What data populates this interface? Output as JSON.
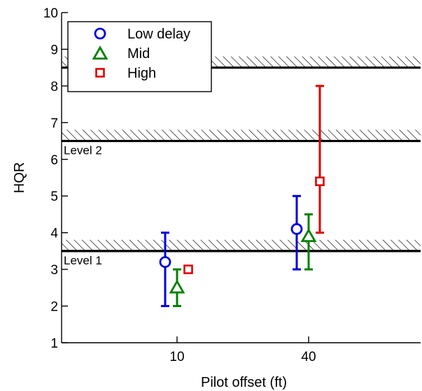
{
  "chart_data": {
    "type": "scatter",
    "xlabel": "Pilot offset (ft)",
    "ylabel": "HQR",
    "ylim": [
      1,
      10
    ],
    "y_ticks": [
      "1",
      "2",
      "3",
      "4",
      "5",
      "6",
      "7",
      "8",
      "9",
      "10"
    ],
    "categories": [
      "10",
      "40"
    ],
    "series": [
      {
        "name": "Low delay",
        "marker": "circle",
        "color": "#0000e0",
        "points": [
          {
            "category": "10",
            "mean": 3.2,
            "low": 2.0,
            "high": 4.0
          },
          {
            "category": "40",
            "mean": 4.1,
            "low": 3.0,
            "high": 5.0
          }
        ]
      },
      {
        "name": "Mid",
        "marker": "triangle",
        "color": "#008000",
        "points": [
          {
            "category": "10",
            "mean": 2.5,
            "low": 2.0,
            "high": 3.0
          },
          {
            "category": "40",
            "mean": 3.9,
            "low": 3.0,
            "high": 4.5
          }
        ]
      },
      {
        "name": "High",
        "marker": "square",
        "color": "#e00000",
        "points": [
          {
            "category": "10",
            "mean": 3.0,
            "low": 3.0,
            "high": 3.0
          },
          {
            "category": "40",
            "mean": 5.4,
            "low": 4.0,
            "high": 8.0
          }
        ]
      }
    ],
    "level_lines": [
      {
        "y": 3.5,
        "label": "Level 1"
      },
      {
        "y": 6.5,
        "label": "Level 2"
      },
      {
        "y": 8.5,
        "label": ""
      }
    ],
    "legend_position": "top-left"
  }
}
